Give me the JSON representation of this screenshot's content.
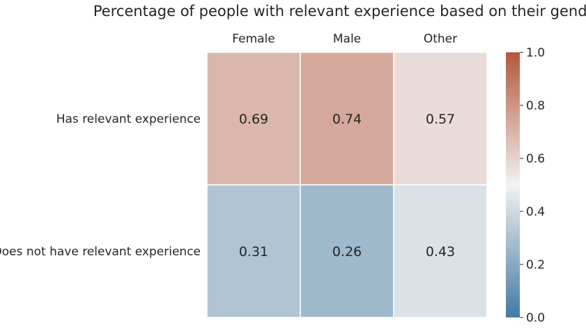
{
  "chart_data": {
    "type": "heatmap",
    "title": "Percentage of people with relevant experience based on their gender",
    "columns": [
      "Female",
      "Male",
      "Other"
    ],
    "rows": [
      "Has relevant experience",
      "Does not have relevant experience"
    ],
    "values": [
      [
        0.69,
        0.74,
        0.57
      ],
      [
        0.31,
        0.26,
        0.43
      ]
    ],
    "value_labels": [
      [
        "0.69",
        "0.74",
        "0.57"
      ],
      [
        "0.31",
        "0.26",
        "0.43"
      ]
    ],
    "colorbar": {
      "min": 0.0,
      "max": 1.0,
      "ticks": [
        "0.0",
        "0.2",
        "0.4",
        "0.6",
        "0.8",
        "1.0"
      ],
      "colormap": "diverging blue-white-orange",
      "low_color": "#4479a2",
      "mid_color": "#f2f2f2",
      "high_color": "#b3583b"
    },
    "column_labels_position": "top",
    "grid": false
  }
}
